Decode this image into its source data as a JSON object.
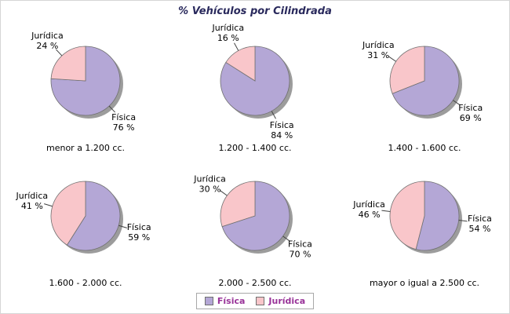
{
  "chart_data": {
    "type": "pie",
    "title": "% Vehículos por Cilindrada",
    "legend_position": "bottom-center",
    "legend": [
      {
        "name": "Física",
        "color": "#b4a7d6"
      },
      {
        "name": "Jurídica",
        "color": "#f9c6ca"
      }
    ],
    "colors": {
      "shadow": "#9c9c9c",
      "slice_border": "#707070",
      "title_color": "#29295c",
      "legend_text": "#993399",
      "label_text": "#000000",
      "leader_line": "#404040"
    },
    "charts": [
      {
        "label": "menor a 1.200 cc.",
        "slices": [
          {
            "name": "Física",
            "value": 76
          },
          {
            "name": "Jurídica",
            "value": 24
          }
        ]
      },
      {
        "label": "1.200 - 1.400 cc.",
        "slices": [
          {
            "name": "Física",
            "value": 84
          },
          {
            "name": "Jurídica",
            "value": 16
          }
        ]
      },
      {
        "label": "1.400 - 1.600 cc.",
        "slices": [
          {
            "name": "Física",
            "value": 69
          },
          {
            "name": "Jurídica",
            "value": 31
          }
        ]
      },
      {
        "label": "1.600 - 2.000 cc.",
        "slices": [
          {
            "name": "Física",
            "value": 59
          },
          {
            "name": "Jurídica",
            "value": 41
          }
        ]
      },
      {
        "label": "2.000 - 2.500 cc.",
        "slices": [
          {
            "name": "Física",
            "value": 70
          },
          {
            "name": "Jurídica",
            "value": 30
          }
        ]
      },
      {
        "label": "mayor o igual a 2.500 cc.",
        "slices": [
          {
            "name": "Física",
            "value": 54
          },
          {
            "name": "Jurídica",
            "value": 46
          }
        ]
      }
    ],
    "value_suffix": " %"
  }
}
